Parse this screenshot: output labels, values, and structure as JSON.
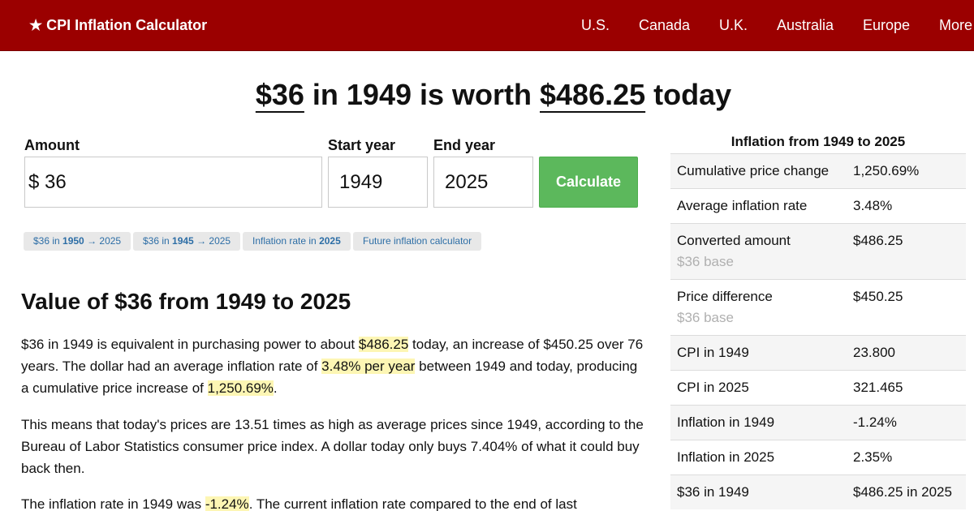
{
  "header": {
    "brand": "★ CPI Inflation Calculator",
    "nav": [
      "U.S.",
      "Canada",
      "U.K.",
      "Australia",
      "Europe",
      "More"
    ]
  },
  "headline": {
    "amount": "$36",
    "mid": " in 1949 is worth ",
    "value": "$486.25",
    "tail": " today"
  },
  "form": {
    "amount_label": "Amount",
    "currency": "$",
    "amount_value": "36",
    "start_label": "Start year",
    "start_value": "1949",
    "end_label": "End year",
    "end_value": "2025",
    "button": "Calculate"
  },
  "chips": [
    {
      "pre": "$36 in ",
      "bold": "1950",
      "post": " → 2025"
    },
    {
      "pre": "$36 in ",
      "bold": "1945",
      "post": " → 2025"
    },
    {
      "pre": "Inflation rate in ",
      "bold": "2025",
      "post": ""
    },
    {
      "pre": "Future inflation calculator",
      "bold": "",
      "post": ""
    }
  ],
  "article": {
    "title": "Value of $36 from 1949 to 2025",
    "p1": {
      "a": "$36 in 1949 is equivalent in purchasing power to about ",
      "h1": "$486.25",
      "b": " today, an increase of $450.25 over 76 years. The dollar had an average inflation rate of ",
      "h2": "3.48% per year",
      "c": " between 1949 and today, producing a cumulative price increase of ",
      "h3": "1,250.69%",
      "d": "."
    },
    "p2": "This means that today's prices are 13.51 times as high as average prices since 1949, according to the Bureau of Labor Statistics consumer price index. A dollar today only buys 7.404% of what it could buy back then.",
    "p3": {
      "a": "The inflation rate in 1949 was ",
      "h1": "-1.24%",
      "b": ". The current inflation rate compared to the end of last"
    }
  },
  "sidebar": {
    "title": "Inflation from 1949 to 2025",
    "rows": [
      {
        "k": "Cumulative price change",
        "v": "1,250.69%",
        "sub": ""
      },
      {
        "k": "Average inflation rate",
        "v": "3.48%",
        "sub": ""
      },
      {
        "k": "Converted amount",
        "v": "$486.25",
        "sub": "$36 base"
      },
      {
        "k": "Price difference",
        "v": "$450.25",
        "sub": "$36 base"
      },
      {
        "k": "CPI in 1949",
        "v": "23.800",
        "sub": ""
      },
      {
        "k": "CPI in 2025",
        "v": "321.465",
        "sub": ""
      },
      {
        "k": "Inflation in 1949",
        "v": "-1.24%",
        "sub": ""
      },
      {
        "k": "Inflation in 2025",
        "v": "2.35%",
        "sub": ""
      },
      {
        "k": "$36 in 1949",
        "v": "$486.25 in 2025",
        "sub": ""
      }
    ]
  }
}
